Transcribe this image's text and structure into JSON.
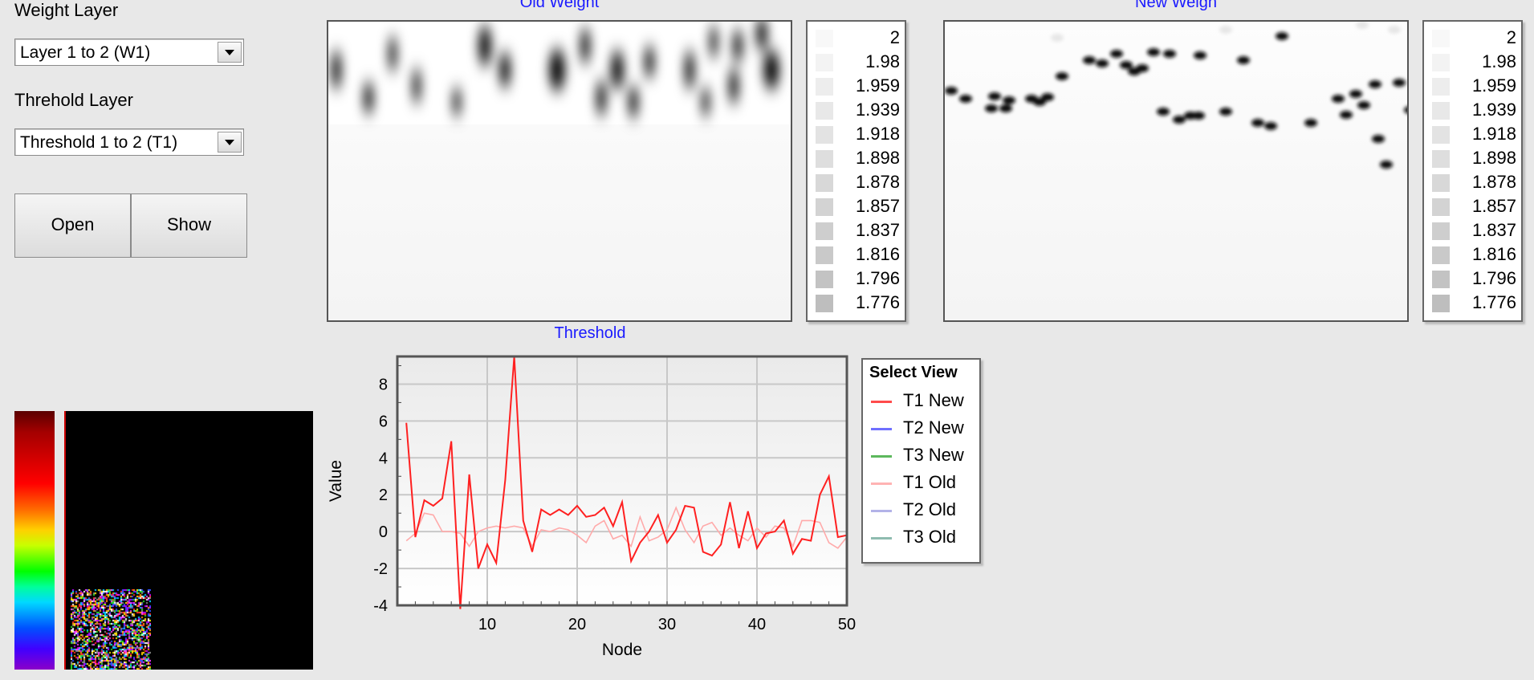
{
  "weight_layer": {
    "label": "Weight Layer",
    "selected": "Layer 1 to 2 (W1)"
  },
  "threshold_layer": {
    "label": "Threhold Layer",
    "selected": "Threshold 1 to 2 (T1)"
  },
  "buttons": {
    "open": "Open",
    "show": "Show"
  },
  "old_weight": {
    "title": "Old Weight"
  },
  "new_weight": {
    "title": "New Weigh"
  },
  "scale_legend": [
    "2",
    "1.98",
    "1.959",
    "1.939",
    "1.918",
    "1.898",
    "1.878",
    "1.857",
    "1.837",
    "1.816",
    "1.796",
    "1.776"
  ],
  "select_view": {
    "title": "Select View",
    "items": [
      {
        "label": "T1 New",
        "color": "#ff4b4b"
      },
      {
        "label": "T2 New",
        "color": "#6f6fff"
      },
      {
        "label": "T3 New",
        "color": "#5cb85c"
      },
      {
        "label": "T1 Old",
        "color": "#ffb3b3"
      },
      {
        "label": "T2 Old",
        "color": "#b3b3e8"
      },
      {
        "label": "T3 Old",
        "color": "#8fbcb0"
      }
    ]
  },
  "chart_data": {
    "type": "line",
    "title": "Threshold",
    "xlabel": "Node",
    "ylabel": "Value",
    "xlim": [
      0,
      50
    ],
    "ylim": [
      -4,
      9.5
    ],
    "xticks": [
      10,
      20,
      30,
      40,
      50
    ],
    "yticks": [
      8,
      6,
      4,
      2,
      0,
      -2,
      -4
    ],
    "grid": true,
    "x": [
      1,
      2,
      3,
      4,
      5,
      6,
      7,
      8,
      9,
      10,
      11,
      12,
      13,
      14,
      15,
      16,
      17,
      18,
      19,
      20,
      21,
      22,
      23,
      24,
      25,
      26,
      27,
      28,
      29,
      30,
      31,
      32,
      33,
      34,
      35,
      36,
      37,
      38,
      39,
      40,
      41,
      42,
      43,
      44,
      45,
      46,
      47,
      48,
      49,
      50
    ],
    "series": [
      {
        "name": "T1 New",
        "color": "#ff2020",
        "values": [
          5.9,
          -0.3,
          1.7,
          1.4,
          1.8,
          4.9,
          -4.2,
          3.1,
          -2.0,
          -0.7,
          -1.7,
          2.8,
          9.5,
          0.6,
          -1.1,
          1.2,
          0.9,
          1.2,
          0.9,
          1.4,
          0.8,
          0.9,
          1.3,
          0.3,
          1.6,
          -1.6,
          -0.6,
          0.0,
          0.9,
          -0.6,
          0.1,
          1.4,
          1.3,
          -1.1,
          -1.3,
          -0.7,
          1.6,
          -0.9,
          1.1,
          -0.9,
          -0.1,
          0.0,
          0.6,
          -1.2,
          -0.4,
          -0.5,
          2.0,
          3.0,
          -0.3,
          -0.2
        ]
      },
      {
        "name": "T1 Old",
        "color": "#ffaaaa",
        "values": [
          -0.5,
          -0.1,
          1.0,
          0.9,
          0.0,
          0.0,
          -0.1,
          -0.8,
          0.0,
          0.2,
          0.3,
          0.2,
          0.3,
          0.2,
          -0.8,
          0.1,
          0.0,
          0.2,
          0.1,
          -0.2,
          -0.6,
          0.3,
          0.6,
          -0.4,
          -0.2,
          -0.8,
          0.8,
          -0.5,
          -0.3,
          0.1,
          1.3,
          0.1,
          -0.6,
          0.3,
          0.5,
          -0.2,
          0.2,
          -0.2,
          -0.5,
          0.2,
          -0.3,
          0.3,
          0.2,
          -0.8,
          0.6,
          0.6,
          0.5,
          -0.6,
          -0.9,
          -0.3
        ]
      }
    ]
  }
}
